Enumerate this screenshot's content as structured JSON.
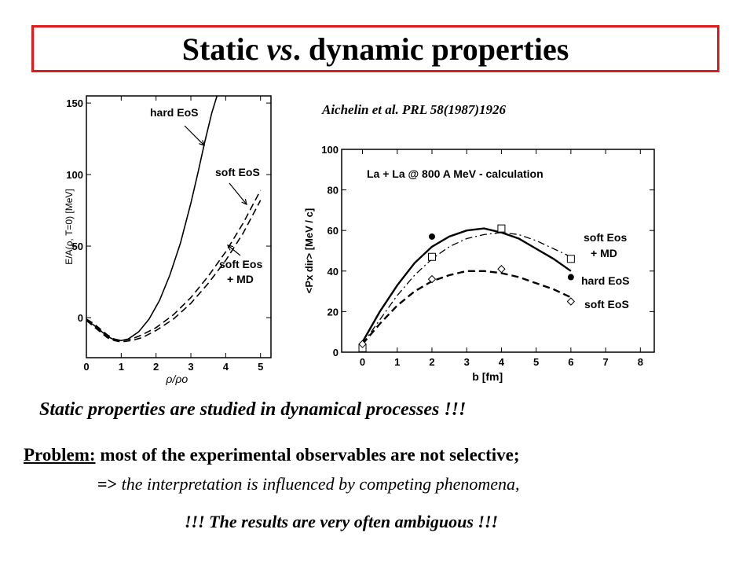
{
  "title": {
    "main_1": "Static ",
    "main_italic": "vs",
    "main_2": ". dynamic properties"
  },
  "citation": "Aichelin et al. PRL 58(1987)1926",
  "chart_data": [
    {
      "type": "line",
      "xlabel": "ρ/ρo",
      "ylabel": "E/A(ρ, T=0) [MeV]",
      "xlim": [
        0,
        5.3
      ],
      "ylim": [
        -28,
        155
      ],
      "xticks": [
        "0",
        "1",
        "2",
        "3",
        "4",
        "5"
      ],
      "yticks": [
        "0",
        "50",
        "100",
        "150"
      ],
      "series": [
        {
          "name": "hard EoS",
          "style": "solid",
          "x": [
            0.0,
            0.2,
            0.4,
            0.6,
            0.8,
            1.0,
            1.2,
            1.5,
            1.8,
            2.1,
            2.4,
            2.7,
            3.0,
            3.2,
            3.4,
            3.6,
            3.75,
            3.85
          ],
          "y": [
            -2,
            -5,
            -9,
            -13,
            -15.5,
            -16,
            -15,
            -10,
            -1,
            12,
            30,
            52,
            80,
            101,
            123,
            143,
            155,
            162
          ]
        },
        {
          "name": "soft EoS",
          "style": "dashed",
          "x": [
            0.0,
            0.2,
            0.4,
            0.6,
            0.8,
            1.0,
            1.3,
            1.6,
            2.0,
            2.5,
            3.0,
            3.5,
            4.0,
            4.5,
            5.0
          ],
          "y": [
            -1,
            -4,
            -8,
            -12,
            -15,
            -16,
            -15,
            -12,
            -7,
            2,
            14,
            29,
            46,
            66,
            89
          ]
        },
        {
          "name": "soft Eos + MD",
          "style": "dashed",
          "x": [
            0.0,
            0.2,
            0.4,
            0.6,
            0.8,
            1.0,
            1.3,
            1.6,
            2.0,
            2.5,
            3.0,
            3.5,
            4.0,
            4.5,
            5.0
          ],
          "y": [
            -2,
            -6,
            -10,
            -14,
            -16,
            -17,
            -16,
            -14,
            -9,
            -1,
            10,
            24,
            40,
            59,
            82
          ]
        }
      ],
      "annotations": [
        {
          "text": "hard EoS"
        },
        {
          "text": "soft EoS"
        },
        {
          "text": "soft Eos"
        },
        {
          "text": "+ MD"
        }
      ]
    },
    {
      "type": "line",
      "title": "La + La @ 800 A MeV - calculation",
      "xlabel": "b   [fm]",
      "ylabel": "<Px dir> [MeV / c]",
      "xlim": [
        -0.6,
        8.4
      ],
      "ylim": [
        0,
        100
      ],
      "xticks": [
        "0",
        "1",
        "2",
        "3",
        "4",
        "5",
        "6",
        "7",
        "8"
      ],
      "yticks": [
        "0",
        "20",
        "40",
        "60",
        "80",
        "100"
      ],
      "series": [
        {
          "name": "hard EoS",
          "style": "solid",
          "marker": "filled-circle",
          "points_x": [
            0,
            2,
            4,
            6
          ],
          "points_y": [
            3,
            57,
            61,
            37
          ],
          "curve_x": [
            0,
            0.5,
            1,
            1.5,
            2,
            2.5,
            3,
            3.5,
            4,
            4.5,
            5,
            5.5,
            6
          ],
          "curve_y": [
            5,
            20,
            33,
            44,
            52,
            57,
            60,
            61,
            59,
            56,
            51,
            46,
            40
          ]
        },
        {
          "name": "soft Eos + MD",
          "style": "dashdot",
          "marker": "open-square",
          "points_x": [
            0,
            2,
            4,
            6
          ],
          "points_y": [
            2,
            47,
            61,
            46
          ],
          "curve_x": [
            0,
            0.5,
            1,
            1.5,
            2,
            2.5,
            3,
            3.5,
            4,
            4.5,
            5,
            5.5,
            6
          ],
          "curve_y": [
            4,
            16,
            28,
            38,
            46,
            52,
            56,
            58,
            59,
            58,
            55,
            51,
            47
          ]
        },
        {
          "name": "soft EoS",
          "style": "dashed",
          "marker": "open-diamond",
          "points_x": [
            0,
            2,
            4,
            6
          ],
          "points_y": [
            4,
            36,
            41,
            25
          ],
          "curve_x": [
            0,
            0.5,
            1,
            1.5,
            2,
            2.5,
            3,
            3.5,
            4,
            4.5,
            5,
            5.5,
            6
          ],
          "curve_y": [
            4,
            14,
            23,
            30,
            35,
            38,
            40,
            40,
            39,
            37,
            34,
            31,
            27
          ]
        }
      ],
      "annotations": [
        {
          "text": "soft Eos"
        },
        {
          "text": "+ MD"
        },
        {
          "text": "hard EoS"
        },
        {
          "text": "soft EoS"
        }
      ]
    }
  ],
  "text": {
    "statement": "Static properties are studied in dynamical processes !!!",
    "problem_label": "Problem:",
    "problem_text": " most of the experimental observables are not selective;",
    "arrow": "=> ",
    "interpretation": "the interpretation is influenced by competing phenomena,",
    "ambiguous": "!!! The results are very often ambiguous !!!"
  }
}
